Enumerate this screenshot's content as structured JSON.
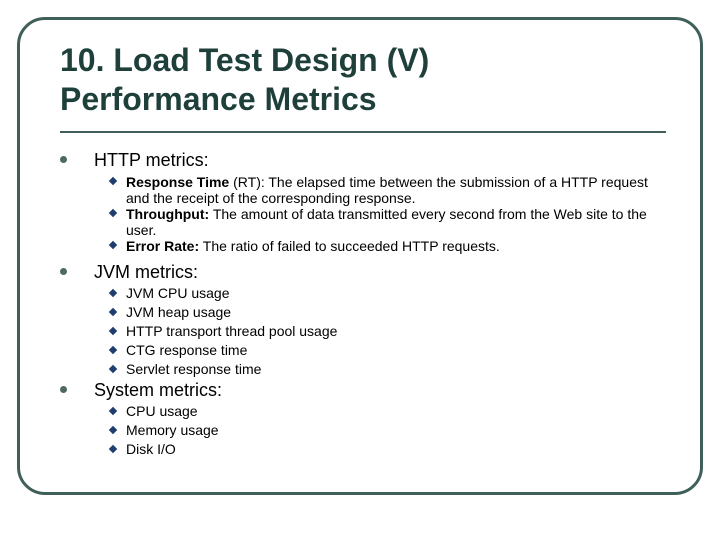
{
  "slide": {
    "title_line1": "10. Load Test Design (V)",
    "title_line2": "Performance Metrics",
    "sections": [
      {
        "heading": "HTTP metrics:",
        "items": [
          {
            "term": "Response Time",
            "text": " (RT): The elapsed time between the submission of a HTTP request and the receipt of the corresponding response."
          },
          {
            "term": "Throughput:",
            "text": " The amount of data transmitted every second from the Web site to the user."
          },
          {
            "term": "Error Rate:",
            "text": " The ratio of failed to succeeded HTTP requests."
          }
        ]
      },
      {
        "heading": "JVM metrics:",
        "items": [
          "JVM CPU usage",
          "JVM heap usage",
          "HTTP transport thread pool usage",
          "CTG response time",
          "Servlet response time"
        ]
      },
      {
        "heading": "System metrics:",
        "items": [
          "CPU usage",
          "Memory usage",
          "Disk I/O"
        ]
      }
    ]
  }
}
